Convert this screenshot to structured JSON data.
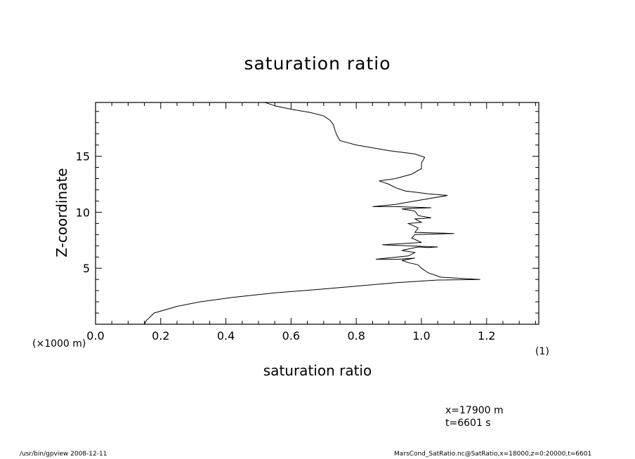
{
  "chart_data": {
    "type": "line",
    "title": "saturation ratio",
    "xlabel": "saturation ratio",
    "ylabel": "Z-coordinate",
    "y_unit_label": "(×1000 m)",
    "panel_label": "(1)",
    "xlim": [
      0.0,
      1.36
    ],
    "ylim": [
      0.0,
      19.8
    ],
    "xticks": [
      "0.0",
      "0.2",
      "0.4",
      "0.6",
      "0.8",
      "1.0",
      "1.2"
    ],
    "yticks": [
      "5",
      "10",
      "15"
    ],
    "series": [
      {
        "x": [
          0.15,
          0.155,
          0.18,
          0.25,
          0.32,
          0.42,
          0.55,
          0.68,
          0.8,
          0.92,
          1.05,
          1.18,
          1.06,
          1.02,
          1.0,
          0.99,
          0.96,
          0.94,
          0.98,
          0.93,
          0.86,
          0.96,
          0.98,
          0.94,
          0.99,
          1.02,
          1.05,
          0.96,
          0.88,
          1.0,
          0.97,
          0.98,
          1.1,
          0.98,
          0.99,
          0.96,
          1.0,
          0.98,
          1.03,
          0.99,
          0.98,
          0.94,
          1.03,
          0.92,
          0.85,
          0.92,
          0.98,
          1.08,
          1.02,
          0.98,
          0.95,
          0.92,
          0.9,
          0.87,
          0.92,
          0.97,
          1.0,
          1.0,
          1.01,
          0.98,
          0.9,
          0.8,
          0.75,
          0.74,
          0.735,
          0.73,
          0.72,
          0.7,
          0.66,
          0.6,
          0.55,
          0.52
        ],
        "y": [
          0.0,
          0.3,
          1.0,
          1.6,
          2.0,
          2.4,
          2.8,
          3.1,
          3.4,
          3.7,
          3.95,
          4.0,
          4.2,
          4.6,
          5.0,
          5.3,
          5.5,
          5.7,
          5.9,
          5.8,
          5.8,
          6.1,
          6.4,
          6.6,
          6.9,
          6.85,
          6.9,
          7.0,
          7.1,
          7.3,
          7.7,
          8.0,
          8.1,
          8.2,
          8.6,
          9.0,
          9.1,
          9.4,
          9.5,
          9.7,
          10.1,
          10.3,
          10.4,
          10.5,
          10.5,
          10.7,
          11.0,
          11.5,
          11.65,
          11.8,
          11.9,
          12.2,
          12.5,
          12.8,
          13.0,
          13.4,
          13.9,
          14.4,
          14.9,
          15.2,
          15.5,
          16.0,
          16.4,
          16.9,
          17.3,
          17.8,
          18.2,
          18.6,
          18.9,
          19.2,
          19.5,
          19.8
        ]
      }
    ]
  },
  "annotations": {
    "x_position": "x=17900 m",
    "time": "t=6601 s"
  },
  "footer": {
    "left": "/usr/bin/gpview   2008-12-11",
    "right": "MarsCond_SatRatio.nc@SatRatio,x=18000,z=0:20000,t=6601"
  }
}
